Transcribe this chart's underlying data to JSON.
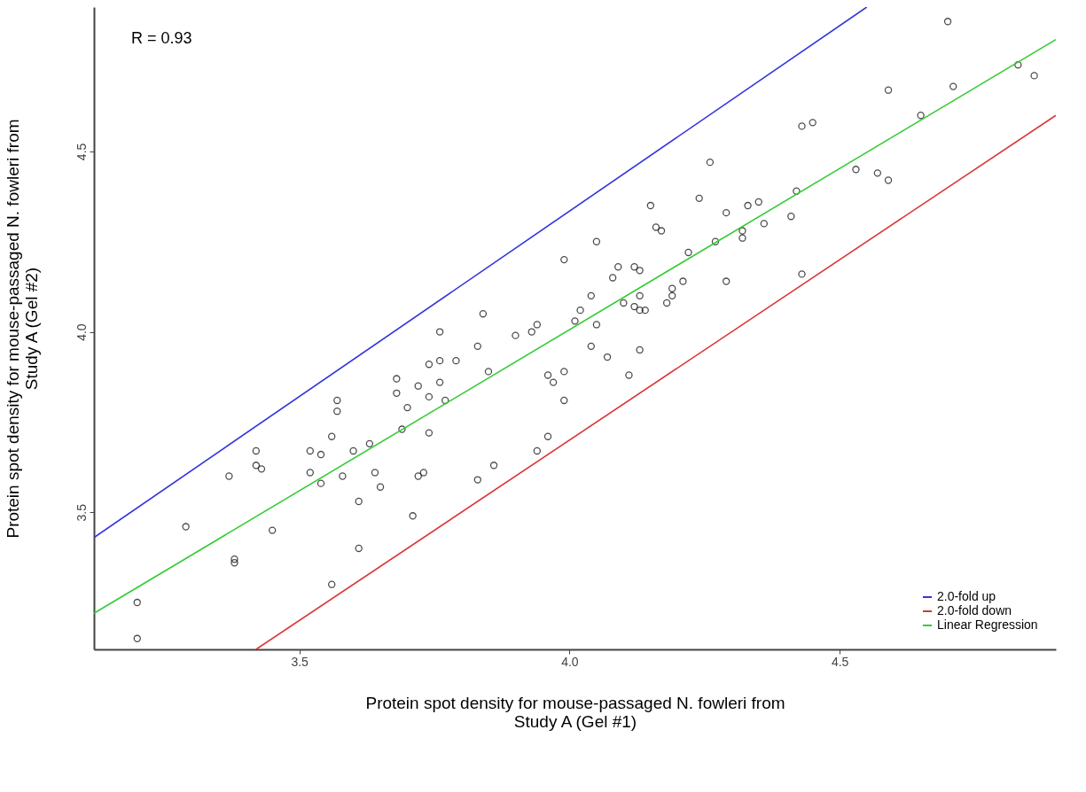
{
  "chart_data": {
    "type": "scatter",
    "xlabel": "Protein spot density for mouse-passaged N. fowleri from\nStudy A (Gel #1)",
    "ylabel": "Protein spot density for mouse-passaged N. fowleri from\nStudy A (Gel #2)",
    "annotations": [
      "R = 0.93"
    ],
    "xlim": [
      3.12,
      4.9
    ],
    "ylim": [
      3.12,
      4.9
    ],
    "xticks": [
      3.5,
      {
        "value": 4,
        "label": "4.0"
      },
      4.5
    ],
    "yticks": [
      3.5,
      {
        "value": 4,
        "label": "4.0"
      },
      4.5
    ],
    "grid": false,
    "legend": "bottom right",
    "series": [
      {
        "color": "#000000",
        "marker": "circle",
        "x": [
          3.2,
          3.2,
          3.29,
          3.37,
          3.38,
          3.38,
          3.42,
          3.42,
          3.43,
          3.45,
          3.52,
          3.54,
          3.52,
          3.54,
          3.56,
          3.57,
          3.57,
          3.56,
          3.6,
          3.58,
          3.61,
          3.61,
          3.63,
          3.64,
          3.65,
          3.68,
          3.68,
          3.69,
          3.7,
          3.71,
          3.72,
          3.72,
          3.73,
          3.74,
          3.74,
          3.74,
          3.76,
          3.76,
          3.76,
          3.77,
          3.79,
          3.83,
          3.84,
          3.83,
          3.85,
          3.86,
          3.9,
          3.93,
          3.94,
          3.94,
          3.96,
          3.96,
          3.97,
          3.99,
          3.99,
          3.99,
          4.01,
          4.02,
          4.04,
          4.05,
          4.04,
          4.05,
          4.07,
          4.08,
          4.09,
          4.12,
          4.13,
          4.11,
          4.1,
          4.13,
          4.12,
          4.13,
          4.14,
          4.13,
          4.15,
          4.16,
          4.17,
          4.18,
          4.19,
          4.19,
          4.21,
          4.22,
          4.24,
          4.26,
          4.27,
          4.29,
          4.29,
          4.32,
          4.32,
          4.33,
          4.35,
          4.36,
          4.41,
          4.42,
          4.43,
          4.43,
          4.45,
          4.53,
          4.57,
          4.59,
          4.59,
          4.65,
          4.7,
          4.71,
          4.83,
          4.86
        ],
        "values": [
          3.25,
          3.15,
          3.46,
          3.6,
          3.37,
          3.36,
          3.67,
          3.63,
          3.62,
          3.45,
          3.67,
          3.66,
          3.61,
          3.58,
          3.3,
          3.81,
          3.78,
          3.71,
          3.67,
          3.6,
          3.53,
          3.4,
          3.69,
          3.61,
          3.57,
          3.87,
          3.83,
          3.73,
          3.79,
          3.49,
          3.85,
          3.6,
          3.61,
          3.91,
          3.82,
          3.72,
          3.92,
          4.0,
          3.86,
          3.81,
          3.92,
          3.96,
          4.05,
          3.59,
          3.89,
          3.63,
          3.99,
          4.0,
          4.02,
          3.67,
          3.71,
          3.88,
          3.86,
          3.89,
          3.81,
          4.2,
          4.03,
          4.06,
          4.1,
          4.02,
          3.96,
          4.25,
          3.93,
          4.15,
          4.18,
          4.18,
          4.17,
          3.88,
          4.08,
          4.1,
          4.07,
          4.06,
          4.06,
          3.95,
          4.35,
          4.29,
          4.28,
          4.08,
          4.12,
          4.1,
          4.14,
          4.22,
          4.37,
          4.47,
          4.25,
          4.33,
          4.14,
          4.26,
          4.28,
          4.35,
          4.36,
          4.3,
          4.32,
          4.39,
          4.16,
          4.57,
          4.58,
          4.45,
          4.44,
          4.42,
          4.67,
          4.6,
          4.86,
          4.68,
          4.74,
          4.71
        ]
      },
      {
        "type": "line",
        "name": "2.0-fold up",
        "color": "#3333dd",
        "line_style": "solid",
        "x": [
          3.12,
          4.55
        ],
        "values": [
          3.43,
          4.9
        ]
      },
      {
        "type": "line",
        "name": "2.0-fold down",
        "color": "#dd3333",
        "line_style": "solid",
        "x": [
          3.42,
          4.9
        ],
        "values": [
          3.12,
          4.6
        ]
      },
      {
        "type": "line",
        "name": "Linear Regression",
        "color": "#33cc33",
        "line_style": "solid",
        "x": [
          3.12,
          4.9
        ],
        "values": [
          3.22,
          4.81
        ]
      }
    ]
  }
}
